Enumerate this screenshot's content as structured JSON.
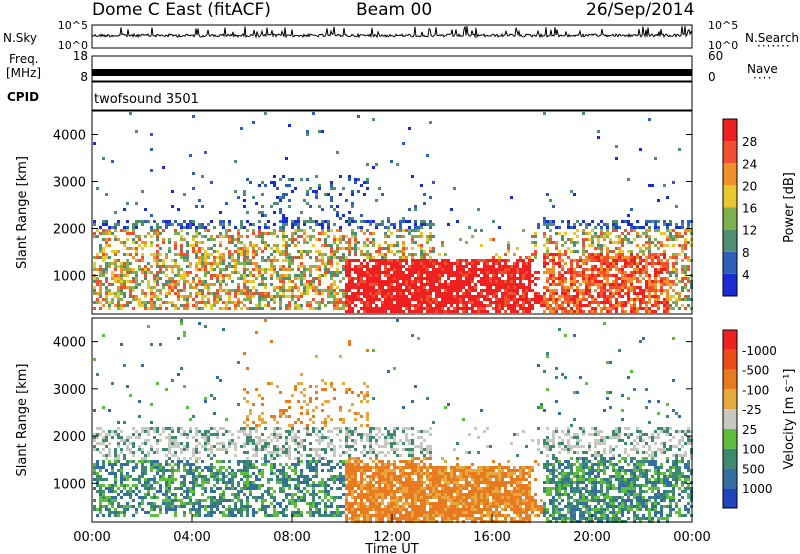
{
  "header": {
    "title": "Dome C East (fitACF)",
    "beam": "Beam 00",
    "date": "26/Sep/2014"
  },
  "left_labels": {
    "nsky": "N.Sky",
    "freq": "Freq.",
    "freq_unit": "[MHz]",
    "cpid": "CPID"
  },
  "right_labels": {
    "nsearch": "N.Search",
    "nave": "Nave"
  },
  "cpid_text": "twofsound 3501",
  "chart_data": [
    {
      "type": "line",
      "name": "noise-panel",
      "ylabel_left": "N.Sky",
      "ylabel_right": "N.Search",
      "left_ticks": [
        "10^5",
        "10^0"
      ],
      "right_ticks": [
        "10^5",
        "10^0"
      ]
    },
    {
      "type": "line",
      "name": "frequency-panel",
      "ylabel_left": "Freq. [MHz]",
      "ylabel_right": "Nave",
      "left_ticks": [
        18,
        8
      ],
      "right_ticks": [
        60,
        0
      ]
    },
    {
      "type": "heatmap",
      "name": "power-panel",
      "ylabel": "Slant Range [km]",
      "yticks": [
        1000,
        2000,
        3000,
        4000
      ],
      "ylim": [
        180,
        4500
      ],
      "xlim_hours": [
        0,
        24
      ],
      "colorbar": {
        "label": "Power [dB]",
        "ticks": [
          "4",
          "8",
          "12",
          "16",
          "20",
          "24",
          "28"
        ],
        "colors": [
          "#1a2cd8",
          "#2f5fb8",
          "#4f8f6f",
          "#7fb04f",
          "#e8c830",
          "#f0902a",
          "#f05030",
          "#ee2020"
        ]
      }
    },
    {
      "type": "heatmap",
      "name": "velocity-panel",
      "ylabel": "Slant Range [km]",
      "yticks": [
        1000,
        2000,
        3000,
        4000
      ],
      "ylim": [
        180,
        4500
      ],
      "xlim_hours": [
        0,
        24
      ],
      "colorbar": {
        "label": "Velocity [m s⁻¹]",
        "ticks": [
          "1000",
          "500",
          "100",
          "25",
          "-25",
          "-100",
          "-500",
          "-1000"
        ],
        "colors": [
          "#2244bb",
          "#336e9e",
          "#3f8a6e",
          "#5fbd3e",
          "#c8c8c0",
          "#e8a840",
          "#e87a20",
          "#ef4a1a",
          "#ee2020"
        ]
      }
    }
  ],
  "xaxis": {
    "label": "Time UT",
    "ticks": [
      "00:00",
      "04:00",
      "08:00",
      "12:00",
      "16:00",
      "20:00",
      "00:00"
    ]
  }
}
